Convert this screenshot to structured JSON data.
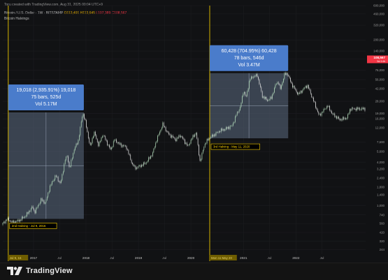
{
  "header": {
    "watermark": "Toru created with TradingView.com, Aug 31, 2025 00:04 UTC+9",
    "symbol": "Bitcoin / U.S. Dollar · 1W · BITSTAMP",
    "open": "O113,491",
    "high": "H113,645",
    "low": "L107,389",
    "close": "C108,567",
    "indicator": "Bitcoin Halvings"
  },
  "colors": {
    "background": "#111214",
    "candle_up": "#b9e3c0",
    "candle_down": "#e8e8e8",
    "halving_line": "#d4b300",
    "measure_fill": "#5c6b82",
    "measure_label": "#4a7ccb",
    "price_tag": "#f23645",
    "label_yellow": "#ffd400"
  },
  "measures": [
    {
      "line1": "19,018 (2,935.91%) 19,018",
      "line2": "75 bars, 525d",
      "line3": "Vol 5.17M"
    },
    {
      "line1": "60,428 (704.95%) 60,428",
      "line2": "78 bars, 546d",
      "line3": "Vol 3.47M"
    }
  ],
  "chart_data": {
    "type": "line",
    "title": "Bitcoin / U.S. Dollar · 1W · BITSTAMP",
    "yscale": "log",
    "ylim": [
      210,
      600000
    ],
    "xlim": [
      "2016-06-01",
      "2023-05-01"
    ],
    "y_ticks": [
      "600,000",
      "460,000",
      "320,000",
      "200,000",
      "140,000",
      "108,567",
      "76,000",
      "56,000",
      "42,000",
      "28,000",
      "19,000",
      "16,000",
      "12,000",
      "7,600",
      "5,600",
      "4,000",
      "3,200",
      "2,400",
      "1,800",
      "1,400",
      "1,000",
      "740",
      "560",
      "420",
      "320",
      "244"
    ],
    "price_tag": "108,567",
    "price_tag_sub": "5d 14h",
    "x_ticks": [
      {
        "label": "Jul 9, 16",
        "date": "2016-07-09",
        "highlight": true
      },
      {
        "label": "2017",
        "date": "2017-01-01"
      },
      {
        "label": "Jul",
        "date": "2017-07-01"
      },
      {
        "label": "2018",
        "date": "2018-01-01"
      },
      {
        "label": "Jul",
        "date": "2018-07-01"
      },
      {
        "label": "2019",
        "date": "2019-01-01"
      },
      {
        "label": "Jul",
        "date": "2019-07-01"
      },
      {
        "label": "2020",
        "date": "2020-01-01"
      },
      {
        "label": "Mon 11 May 20",
        "date": "2020-05-11",
        "highlight": true
      },
      {
        "label": "2021",
        "date": "2021-01-01"
      },
      {
        "label": "Jul",
        "date": "2021-07-01"
      },
      {
        "label": "2022",
        "date": "2022-01-01"
      },
      {
        "label": "Jul",
        "date": "2022-07-01"
      }
    ],
    "halvings": [
      {
        "label": "2nd Halving - Jul 9, 2016",
        "date": "2016-07-09"
      },
      {
        "label": "3rd Halving - May 11, 2020",
        "date": "2020-05-11"
      }
    ],
    "measure_ranges": [
      {
        "from_date": "2016-07-09",
        "to_date": "2017-12-17",
        "from_price": 650,
        "to_price": 19650
      },
      {
        "from_date": "2020-05-11",
        "to_date": "2021-11-08",
        "from_price": 8570,
        "to_price": 69000
      }
    ],
    "series": [
      {
        "x": [
          "2016-06-01",
          "2016-07-09",
          "2016-08-15",
          "2016-10-01",
          "2016-11-15",
          "2017-01-01",
          "2017-01-15",
          "2017-03-01",
          "2017-04-01",
          "2017-05-01",
          "2017-06-10",
          "2017-07-15",
          "2017-08-15",
          "2017-09-01",
          "2017-09-15",
          "2017-10-15",
          "2017-11-15",
          "2017-12-17",
          "2018-01-05",
          "2018-02-06",
          "2018-03-05",
          "2018-04-06",
          "2018-05-05",
          "2018-06-28",
          "2018-07-25",
          "2018-09-01",
          "2018-10-15",
          "2018-11-25",
          "2018-12-15",
          "2019-01-15",
          "2019-03-01",
          "2019-04-15",
          "2019-05-15",
          "2019-06-26",
          "2019-08-01",
          "2019-09-25",
          "2019-10-26",
          "2019-12-18",
          "2020-01-15",
          "2020-02-13",
          "2020-03-12",
          "2020-04-10",
          "2020-05-11",
          "2020-06-15",
          "2020-07-27",
          "2020-09-01",
          "2020-10-21",
          "2020-11-20",
          "2020-12-17",
          "2021-01-08",
          "2021-01-25",
          "2021-02-21",
          "2021-03-14",
          "2021-04-14",
          "2021-05-19",
          "2021-06-22",
          "2021-07-20",
          "2021-08-23",
          "2021-09-07",
          "2021-09-21",
          "2021-10-20",
          "2021-11-08",
          "2021-12-10",
          "2022-01-24",
          "2022-03-28",
          "2022-05-12",
          "2022-06-18",
          "2022-08-15",
          "2022-09-20",
          "2022-11-09",
          "2022-12-30",
          "2023-01-20",
          "2023-03-10",
          "2023-05-01"
        ],
        "values": [
          540,
          650,
          580,
          620,
          720,
          960,
          800,
          1200,
          1080,
          1800,
          2600,
          2000,
          4300,
          4900,
          3200,
          5800,
          8000,
          19650,
          14000,
          6500,
          10500,
          6800,
          9800,
          5900,
          8200,
          7000,
          6500,
          3800,
          3300,
          3500,
          3900,
          5200,
          8200,
          13500,
          10000,
          8200,
          9500,
          6600,
          8600,
          10300,
          4000,
          6900,
          8570,
          9500,
          10900,
          11500,
          12800,
          18500,
          23000,
          40000,
          31000,
          57000,
          61500,
          64500,
          33000,
          29000,
          31000,
          50000,
          52000,
          41000,
          66000,
          69000,
          48000,
          35000,
          47000,
          28000,
          17600,
          24400,
          18500,
          15600,
          16500,
          22000,
          22000,
          22000
        ]
      }
    ]
  }
}
